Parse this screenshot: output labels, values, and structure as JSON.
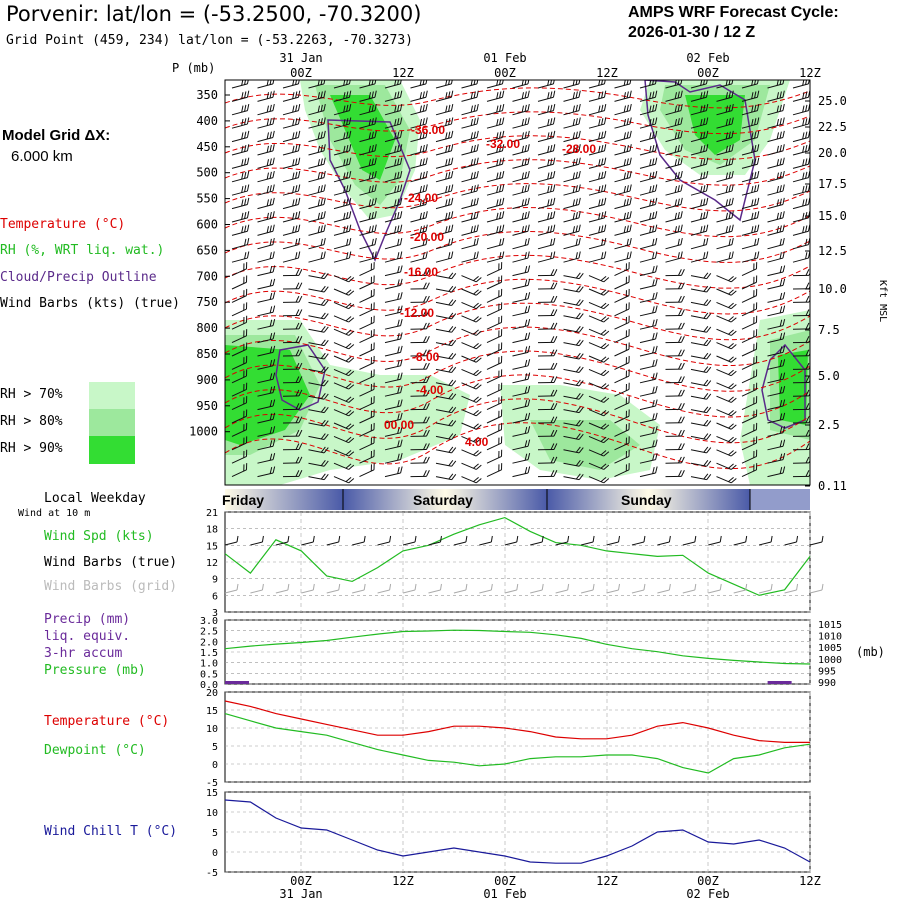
{
  "header": {
    "title": "Porvenir:  lat/lon = (-53.2500, -70.3200)",
    "grid_point": "Grid Point (459, 234) lat/lon = (-53.2263, -70.3273)",
    "cycle_line1": "AMPS WRF Forecast Cycle:",
    "cycle_line2": "2026-01-30 / 12  Z"
  },
  "left_legend": {
    "model_grid_line1": "Model Grid ΔX:",
    "model_grid_line2": "6.000 km",
    "temperature": "Temperature (°C)",
    "rh": "RH (%, WRT liq. wat.)",
    "cloud": "Cloud/Precip Outline",
    "wind_barbs": "Wind Barbs (kts) (true)",
    "rh70": "RH > 70%",
    "rh80": "RH > 80%",
    "rh90": "RH > 90%",
    "local_weekday": "Local Weekday",
    "wind_10m": "Wind at 10 m",
    "wind_spd": "Wind Spd (kts)",
    "wind_barbs_true": "Wind Barbs (true)",
    "wind_barbs_grid": "Wind Barbs (grid)",
    "precip1": "Precip (mm)",
    "precip2": "liq. equiv.",
    "precip3": "3-hr accum",
    "pressure": "Pressure (mb)",
    "temperature2": "Temperature (°C)",
    "dewpoint": "Dewpoint (°C)",
    "wind_chill": "Wind Chill T (°C)"
  },
  "colors": {
    "rh70": "#c8f7c8",
    "rh80": "#9de89d",
    "rh90": "#33dd33",
    "temp_contour": "#dd0000",
    "cloud_outline": "#5a2a8a",
    "speed_line": "#22bb22",
    "pressure_line": "#22bb22",
    "temp_line": "#dd0000",
    "dew_line": "#22bb22",
    "chill_line": "#1a1a9a",
    "precip_bar": "#6a2a9a",
    "day_band": "#4a5aa8"
  },
  "chart_data": [
    {
      "type": "heatmap",
      "title": "Time-height cross section",
      "ylabel": "P (mb)",
      "y2label": "Kft MSL",
      "time_ticks": [
        "00Z",
        "12Z",
        "00Z",
        "12Z",
        "00Z",
        "12Z"
      ],
      "date_ticks": [
        "31 Jan",
        "01 Feb",
        "02 Feb"
      ],
      "pressure_levels": [
        350,
        400,
        450,
        500,
        550,
        600,
        650,
        700,
        750,
        800,
        850,
        900,
        950,
        1000
      ],
      "height_kft": [
        "25.0",
        "22.5",
        "20.0",
        "17.5",
        "15.0",
        "12.5",
        "10.0",
        "7.5",
        "5.0",
        "2.5",
        "0.11"
      ],
      "temperature_labels": [
        "-36.00",
        "-32.00",
        "-28.00",
        "-24.00",
        "-20.00",
        "-16.00",
        "-12.00",
        "-8.00",
        "-4.00",
        "00.00",
        "4.00"
      ]
    },
    {
      "type": "line",
      "title": "Local Weekday",
      "days": [
        "Friday",
        "Saturday",
        "Sunday"
      ]
    },
    {
      "type": "line",
      "title": "Wind Spd (kts)",
      "ylim": [
        3,
        21
      ],
      "yticks": [
        3,
        6,
        9,
        12,
        15,
        18,
        21
      ],
      "x_hours": [
        0,
        3,
        6,
        9,
        12,
        15,
        18,
        21,
        24,
        27,
        30,
        33,
        36,
        39,
        42,
        45,
        48,
        51,
        54,
        57,
        60,
        63,
        66,
        69
      ],
      "values": [
        13.5,
        10,
        16,
        14,
        9.5,
        8.5,
        11,
        14,
        15,
        17,
        18.7,
        20,
        17.5,
        15.5,
        15,
        14,
        13.5,
        13,
        13.2,
        10,
        8,
        6,
        7,
        13
      ]
    },
    {
      "type": "line",
      "title": "Precip / Pressure",
      "ylim": [
        0,
        3
      ],
      "yticks": [
        "0.0",
        "0.5",
        "1.0",
        "1.5",
        "2.0",
        "2.5",
        "3.0"
      ],
      "y2ticks": [
        "990",
        "995",
        "1000",
        "1005",
        "1010",
        "1015"
      ],
      "y2label": "(mb)",
      "pressure_values": [
        1003.8,
        1004.8,
        1005.6,
        1006.2,
        1007,
        1008.3,
        1009.5,
        1010.5,
        1010.7,
        1011,
        1010.9,
        1010.5,
        1010.2,
        1009.2,
        1007.8,
        1005.5,
        1003.8,
        1002.6,
        1001,
        1000,
        999.2,
        998.6,
        998,
        997.8
      ],
      "precip_values": [
        {
          "hour": 0,
          "mm": 0.03
        },
        {
          "hour": 64,
          "mm": 0.04
        }
      ]
    },
    {
      "type": "line",
      "title": "Temperature / Dewpoint",
      "ylim": [
        -5,
        20
      ],
      "yticks": [
        -5,
        0,
        5,
        10,
        15,
        20
      ],
      "series": [
        {
          "name": "Temperature",
          "values": [
            17.5,
            16,
            14,
            12.5,
            11,
            9.5,
            8,
            8,
            9,
            10.5,
            10.5,
            10,
            9,
            7.5,
            7,
            7,
            8,
            10.5,
            11.5,
            10,
            8,
            6.5,
            6,
            6
          ]
        },
        {
          "name": "Dewpoint",
          "values": [
            14,
            12,
            10,
            9,
            8,
            6,
            4,
            2.5,
            1,
            0.5,
            -0.5,
            0,
            1.5,
            2,
            2,
            2.5,
            2.5,
            1.5,
            -1,
            -2.5,
            1.5,
            2.5,
            4.5,
            5.5
          ]
        }
      ]
    },
    {
      "type": "line",
      "title": "Wind Chill T (°C)",
      "ylim": [
        -5,
        15
      ],
      "yticks": [
        -5,
        0,
        5,
        10,
        15
      ],
      "x_ticks_bottom": [
        "00Z",
        "12Z",
        "00Z",
        "12Z",
        "00Z",
        "12Z"
      ],
      "date_ticks_bottom": [
        "31 Jan",
        "01 Feb",
        "02 Feb"
      ],
      "values": [
        13,
        12.5,
        8.5,
        6,
        5.5,
        3,
        0.5,
        -1,
        0,
        1,
        0,
        -1,
        -2.5,
        -2.8,
        -2.8,
        -1,
        1.5,
        5,
        5.5,
        2.5,
        2,
        3,
        1,
        -2.5
      ]
    }
  ]
}
